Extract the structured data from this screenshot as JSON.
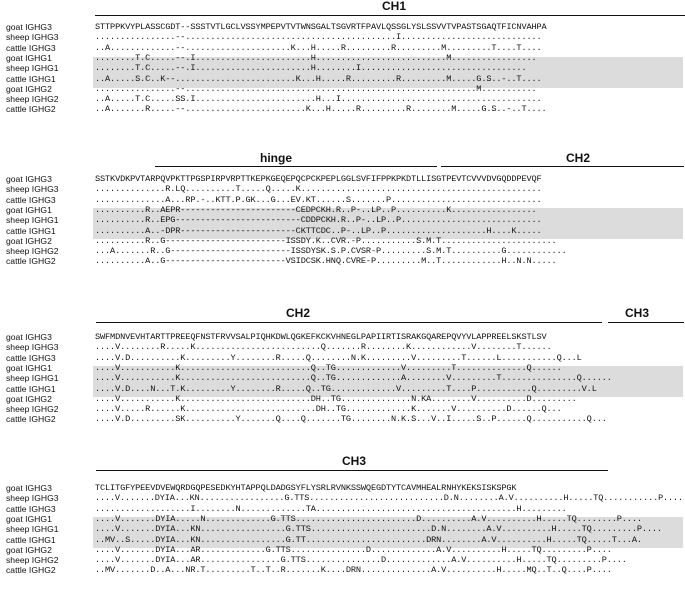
{
  "domains": {
    "b1_ch1": "CH1",
    "b2_hinge": "hinge",
    "b2_ch2": "CH2",
    "b3_ch2": "CH2",
    "b3_ch3": "CH3",
    "b4_ch3": "CH3"
  },
  "blocks": [
    {
      "rows": [
        {
          "name": "goat IGHG3",
          "seq": "STTPPKVYPLASSCGDT--SSSTVTLGCLVSSYMPEPVTVTWNSGALTSGVRTFPAVLQSSGLYSLSSVVTVPASTSGAQTFICNVAHPA"
        },
        {
          "name": "sheep IGHG3",
          "seq": "................--..........................................I............................"
        },
        {
          "name": "cattle IGHG3",
          "seq": "..A.............--.....................K...H.....R.........R.........M.........T....T...."
        },
        {
          "name": "goat IGHG1",
          "seq": "........T.C.....--.I.......................H..........................M................."
        },
        {
          "name": "sheep IGHG1",
          "seq": "........T.C.....--.I.......................H........I................................."
        },
        {
          "name": "cattle IGHG1",
          "seq": "..A.....S.C..K--........................K...H.....R.........R.........M.....G.S..-..T...."
        },
        {
          "name": "goat IGHG2",
          "seq": "................--..........................................................M..........."
        },
        {
          "name": "sheep IGHG2",
          "seq": "..A.....T.C.....SS.I........................H...I........................................"
        },
        {
          "name": "cattle IGHG2",
          "seq": "..A.......R.....--........................K...H.....R.........R........M.....G.S..-..T...."
        }
      ]
    },
    {
      "rows": [
        {
          "name": "goat IGHG3",
          "seq": "SSTKVDKPVTARPQVPKTTPGSPIRPVRPTTKEPKGEQEPQCPCKPEPLGGLSVFIFPPKPKDTLLISGTPEVTCVVVDVGQDDPEVQF"
        },
        {
          "name": "sheep IGHG3",
          "seq": "..............R.LQ..........T.....Q.....K................................................"
        },
        {
          "name": "cattle IGHG3",
          "seq": "..............A...RP.-..KTT.P.GK...G...EV.KT......S.......P.............................."
        },
        {
          "name": "goat IGHG1",
          "seq": "..........R..AEPR-----------------------CEDPCKH.R..P-..LP..P..........K................."
        },
        {
          "name": "sheep IGHG1",
          "seq": "..........R..EPG-------------------------CDDPCKH.R..P-..LP..P............................"
        },
        {
          "name": "cattle IGHG1",
          "seq": "..........A..-DPR-----------------------CKTTCDC..P-..LP..P....................H....K....."
        },
        {
          "name": "goat IGHG2",
          "seq": "..........R..G------------------------ISSDY.K..CVR.-P...........S.M.T......................."
        },
        {
          "name": "sheep IGHG2",
          "seq": "...A.......R..G------------------------ISSDYSK.S.P.CVSR-P.........S.M.T..........G............"
        },
        {
          "name": "cattle IGHG2",
          "seq": "..........A..G------------------------VSIDCSK.HNQ.CVRE-P.........M..T............H..N.N....."
        }
      ]
    },
    {
      "rows": [
        {
          "name": "goat IGHG3",
          "seq": "SWFMDNVEVHTARTTPREEQFNSTFRVVSALPIQHKDWLQGKEFKCKVHNEGLPAPIIRTISRAKGQAREPQVYVLAPPREELSKSTLSV"
        },
        {
          "name": "sheep IGHG3",
          "seq": "....V........R.....K.........................Q.......R........K............V........T......"
        },
        {
          "name": "cattle IGHG3",
          "seq": "....V.D..........K.........Y........R.....Q........N.K.........V.........T......L...........Q...L"
        },
        {
          "name": "goat IGHG1",
          "seq": "....V...........K..........................Q..TG.............V.........T..............Q......"
        },
        {
          "name": "sheep IGHG1",
          "seq": "....V...........K..........................Q..TG.............A........V.........T...............Q......"
        },
        {
          "name": "cattle IGHG1",
          "seq": "....V.D....N...T.K.........Y........R.....Q..TG.............V.........T....P...........Q.........V.L"
        },
        {
          "name": "goat IGHG2",
          "seq": "....V...........K..........................DH..TG..............N.KA........V..........D........."
        },
        {
          "name": "sheep IGHG2",
          "seq": "....V.....R......K..........................DH..TG.............K.......V..........D......Q..."
        },
        {
          "name": "cattle IGHG2",
          "seq": "....V.D.........SK..........Y.......Q....Q.......TG........N.K.S...V..I.....S..P......Q...........Q..."
        }
      ]
    },
    {
      "rows": [
        {
          "name": "goat IGHG3",
          "seq": "TCLITGFYPEEVDVEWQRDGQPESEDKYHTAPPQLDADGSYFLYSRLRVNKSSWQEGDTYTCAVMHEALRNHYKEKSISKSPGK"
        },
        {
          "name": "sheep IGHG3",
          "seq": "....V.......DYIA...KN.................G.TTS...........................D.N........A.V..........H.....TQ...........P...."
        },
        {
          "name": "cattle IGHG3",
          "seq": "...................I........N.............TA........................................H........."
        },
        {
          "name": "goat IGHG1",
          "seq": "....V.......DYIA.....N.............G.TTS........................D..........A.V..........H.....TQ........P...."
        },
        {
          "name": "sheep IGHG1",
          "seq": "....V.......DYIA...KN.................G.TTS........................D.N........A.V..........H.....TQ.........P...."
        },
        {
          "name": "cattle IGHG1",
          "seq": "..MV..S.....DYIA...KN.................G.TT........................DRN........A.V..........H.....TQ.....T...A."
        },
        {
          "name": "goat IGHG2",
          "seq": "....V.......DYIA...AR.............G.TTS...............D.............A.V..........H.....TQ.........P...."
        },
        {
          "name": "sheep IGHG2",
          "seq": "....V.......DYIA...AR................G.TTS...............D.............A.V..........H.....TQ.........P...."
        },
        {
          "name": "cattle IGHG2",
          "seq": "..MV.......D..A...NR.T.........T..T..R.......K....DRN..............A.V..........H.....MQ..T..Q....P...."
        }
      ]
    }
  ]
}
